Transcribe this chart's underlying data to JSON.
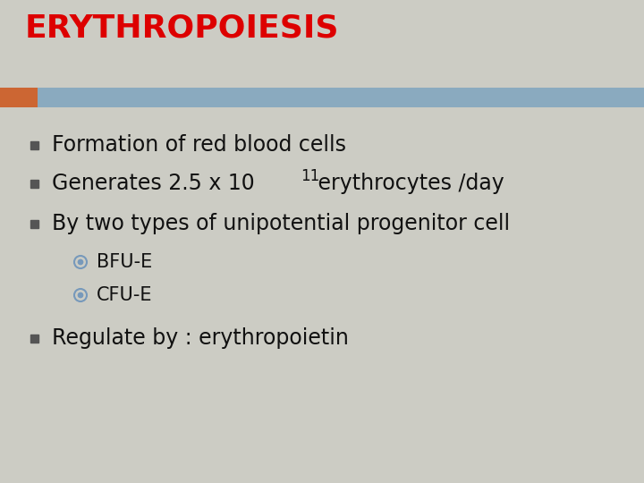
{
  "title": "ERYTHROPOIESIS",
  "title_color": "#dd0000",
  "title_fontsize": 26,
  "title_fontweight": "bold",
  "background_color": "#ccccc4",
  "header_bar_color": "#8aaabf",
  "header_bar_left_color": "#cc6633",
  "bullet_items": [
    "Formation of red blood cells",
    "Generates 2.5 x 10",
    "By two types of unipotential progenitor cell"
  ],
  "bullet_superscript": "11",
  "bullet_suffix": " erythrocytes /day",
  "sub_items": [
    "BFU-E",
    "CFU-E"
  ],
  "last_bullet": "Regulate by : erythropoietin",
  "text_color": "#111111",
  "text_fontsize": 17,
  "sub_fontsize": 15,
  "bullet_square_color": "#555555",
  "circle_bullet_color": "#7799bb"
}
